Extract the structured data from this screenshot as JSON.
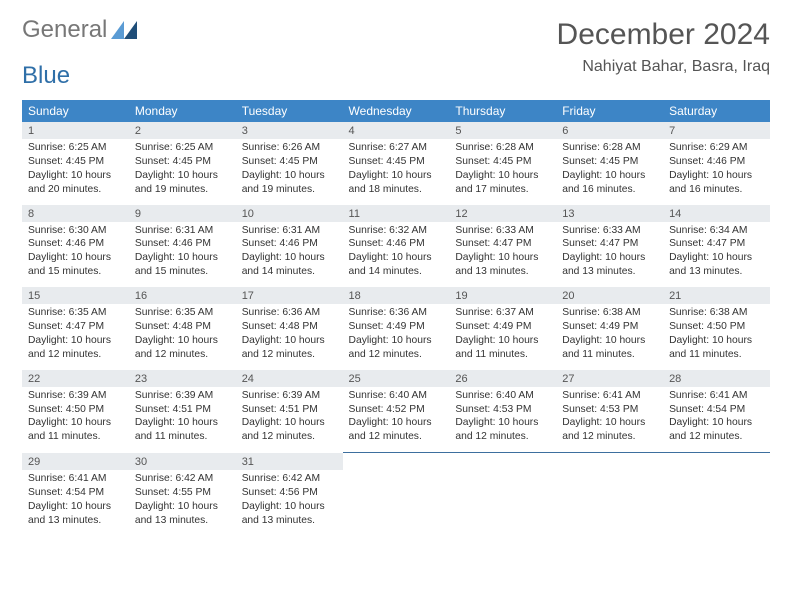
{
  "logo": {
    "word1": "General",
    "word2": "Blue"
  },
  "title": "December 2024",
  "location": "Nahiyat Bahar, Basra, Iraq",
  "colors": {
    "header_bg": "#3d85c6",
    "header_fg": "#ffffff",
    "daynum_bg": "#e8ebee",
    "divider": "#3d6f9e",
    "title_color": "#555555",
    "text_color": "#333333",
    "logo_gray": "#777777",
    "logo_blue": "#2f6fa8",
    "triangle_light": "#5a9bd4",
    "triangle_dark": "#1f4e79"
  },
  "day_headers": [
    "Sunday",
    "Monday",
    "Tuesday",
    "Wednesday",
    "Thursday",
    "Friday",
    "Saturday"
  ],
  "weeks": [
    [
      {
        "n": "1",
        "sr": "6:25 AM",
        "ss": "4:45 PM",
        "dl": "10 hours and 20 minutes."
      },
      {
        "n": "2",
        "sr": "6:25 AM",
        "ss": "4:45 PM",
        "dl": "10 hours and 19 minutes."
      },
      {
        "n": "3",
        "sr": "6:26 AM",
        "ss": "4:45 PM",
        "dl": "10 hours and 19 minutes."
      },
      {
        "n": "4",
        "sr": "6:27 AM",
        "ss": "4:45 PM",
        "dl": "10 hours and 18 minutes."
      },
      {
        "n": "5",
        "sr": "6:28 AM",
        "ss": "4:45 PM",
        "dl": "10 hours and 17 minutes."
      },
      {
        "n": "6",
        "sr": "6:28 AM",
        "ss": "4:45 PM",
        "dl": "10 hours and 16 minutes."
      },
      {
        "n": "7",
        "sr": "6:29 AM",
        "ss": "4:46 PM",
        "dl": "10 hours and 16 minutes."
      }
    ],
    [
      {
        "n": "8",
        "sr": "6:30 AM",
        "ss": "4:46 PM",
        "dl": "10 hours and 15 minutes."
      },
      {
        "n": "9",
        "sr": "6:31 AM",
        "ss": "4:46 PM",
        "dl": "10 hours and 15 minutes."
      },
      {
        "n": "10",
        "sr": "6:31 AM",
        "ss": "4:46 PM",
        "dl": "10 hours and 14 minutes."
      },
      {
        "n": "11",
        "sr": "6:32 AM",
        "ss": "4:46 PM",
        "dl": "10 hours and 14 minutes."
      },
      {
        "n": "12",
        "sr": "6:33 AM",
        "ss": "4:47 PM",
        "dl": "10 hours and 13 minutes."
      },
      {
        "n": "13",
        "sr": "6:33 AM",
        "ss": "4:47 PM",
        "dl": "10 hours and 13 minutes."
      },
      {
        "n": "14",
        "sr": "6:34 AM",
        "ss": "4:47 PM",
        "dl": "10 hours and 13 minutes."
      }
    ],
    [
      {
        "n": "15",
        "sr": "6:35 AM",
        "ss": "4:47 PM",
        "dl": "10 hours and 12 minutes."
      },
      {
        "n": "16",
        "sr": "6:35 AM",
        "ss": "4:48 PM",
        "dl": "10 hours and 12 minutes."
      },
      {
        "n": "17",
        "sr": "6:36 AM",
        "ss": "4:48 PM",
        "dl": "10 hours and 12 minutes."
      },
      {
        "n": "18",
        "sr": "6:36 AM",
        "ss": "4:49 PM",
        "dl": "10 hours and 12 minutes."
      },
      {
        "n": "19",
        "sr": "6:37 AM",
        "ss": "4:49 PM",
        "dl": "10 hours and 11 minutes."
      },
      {
        "n": "20",
        "sr": "6:38 AM",
        "ss": "4:49 PM",
        "dl": "10 hours and 11 minutes."
      },
      {
        "n": "21",
        "sr": "6:38 AM",
        "ss": "4:50 PM",
        "dl": "10 hours and 11 minutes."
      }
    ],
    [
      {
        "n": "22",
        "sr": "6:39 AM",
        "ss": "4:50 PM",
        "dl": "10 hours and 11 minutes."
      },
      {
        "n": "23",
        "sr": "6:39 AM",
        "ss": "4:51 PM",
        "dl": "10 hours and 11 minutes."
      },
      {
        "n": "24",
        "sr": "6:39 AM",
        "ss": "4:51 PM",
        "dl": "10 hours and 12 minutes."
      },
      {
        "n": "25",
        "sr": "6:40 AM",
        "ss": "4:52 PM",
        "dl": "10 hours and 12 minutes."
      },
      {
        "n": "26",
        "sr": "6:40 AM",
        "ss": "4:53 PM",
        "dl": "10 hours and 12 minutes."
      },
      {
        "n": "27",
        "sr": "6:41 AM",
        "ss": "4:53 PM",
        "dl": "10 hours and 12 minutes."
      },
      {
        "n": "28",
        "sr": "6:41 AM",
        "ss": "4:54 PM",
        "dl": "10 hours and 12 minutes."
      }
    ],
    [
      {
        "n": "29",
        "sr": "6:41 AM",
        "ss": "4:54 PM",
        "dl": "10 hours and 13 minutes."
      },
      {
        "n": "30",
        "sr": "6:42 AM",
        "ss": "4:55 PM",
        "dl": "10 hours and 13 minutes."
      },
      {
        "n": "31",
        "sr": "6:42 AM",
        "ss": "4:56 PM",
        "dl": "10 hours and 13 minutes."
      },
      null,
      null,
      null,
      null
    ]
  ],
  "labels": {
    "sunrise": "Sunrise:",
    "sunset": "Sunset:",
    "daylight": "Daylight:"
  }
}
